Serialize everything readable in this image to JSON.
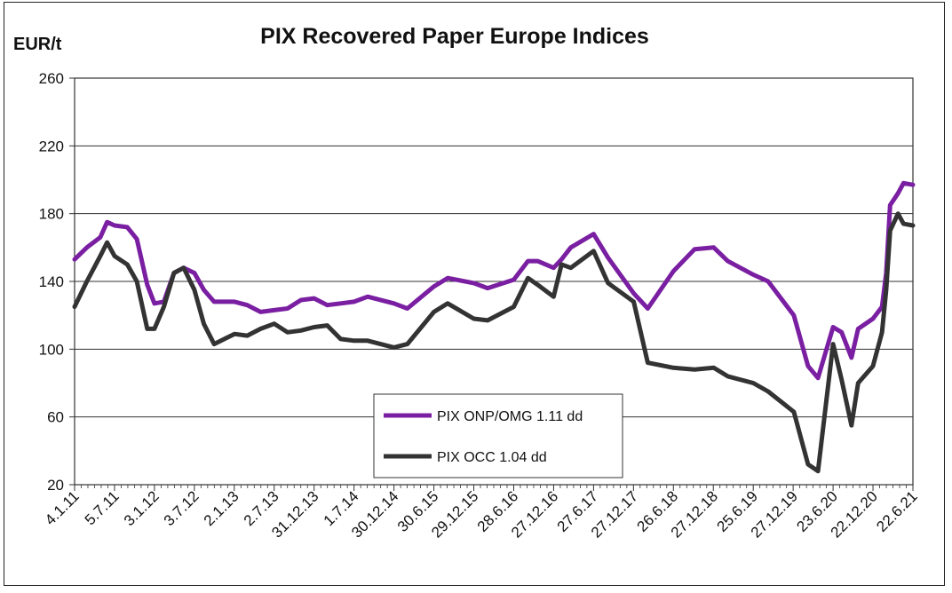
{
  "chart_data": {
    "type": "line",
    "title": "PIX Recovered Paper Europe Indices",
    "ylabel": "EUR/t",
    "xlabel": "",
    "ylim": [
      20,
      260
    ],
    "yticks": [
      20,
      60,
      100,
      140,
      180,
      220,
      260
    ],
    "grid": "horizontal",
    "legend_placement": "bottom-center",
    "x_tick_labels": [
      "4.1.11",
      "5.7.11",
      "3.1.12",
      "3.7.12",
      "2.1.13",
      "2.7.13",
      "31.12.13",
      "1.7.14",
      "30.12.14",
      "30.6.15",
      "29.12.15",
      "28.6.16",
      "27.12.16",
      "27.6.17",
      "27.12.17",
      "26.6.18",
      "27.12.18",
      "25.6.19",
      "27.12.19",
      "23.6.20",
      "22.12.20",
      "22.6.21"
    ],
    "x_start": "2011-01-04",
    "x_end": "2021-06-22",
    "series": [
      {
        "name": "PIX ONP/OMG 1.11 dd",
        "color": "#7a1fa2",
        "points": [
          [
            "2011-01-04",
            153
          ],
          [
            "2011-03-01",
            160
          ],
          [
            "2011-05-01",
            166
          ],
          [
            "2011-06-01",
            175
          ],
          [
            "2011-07-05",
            173
          ],
          [
            "2011-09-01",
            172
          ],
          [
            "2011-10-15",
            165
          ],
          [
            "2011-12-01",
            138
          ],
          [
            "2012-01-03",
            127
          ],
          [
            "2012-02-15",
            128
          ],
          [
            "2012-04-01",
            145
          ],
          [
            "2012-05-15",
            148
          ],
          [
            "2012-07-03",
            145
          ],
          [
            "2012-08-15",
            135
          ],
          [
            "2012-10-01",
            128
          ],
          [
            "2013-01-02",
            128
          ],
          [
            "2013-03-01",
            126
          ],
          [
            "2013-05-01",
            122
          ],
          [
            "2013-07-02",
            123
          ],
          [
            "2013-09-01",
            124
          ],
          [
            "2013-11-01",
            129
          ],
          [
            "2013-12-31",
            130
          ],
          [
            "2014-03-01",
            126
          ],
          [
            "2014-05-01",
            127
          ],
          [
            "2014-07-01",
            128
          ],
          [
            "2014-09-01",
            131
          ],
          [
            "2014-12-30",
            127
          ],
          [
            "2015-03-01",
            124
          ],
          [
            "2015-06-30",
            137
          ],
          [
            "2015-09-01",
            142
          ],
          [
            "2015-12-29",
            139
          ],
          [
            "2016-03-01",
            136
          ],
          [
            "2016-06-28",
            141
          ],
          [
            "2016-09-01",
            152
          ],
          [
            "2016-10-15",
            152
          ],
          [
            "2016-12-27",
            148
          ],
          [
            "2017-02-01",
            153
          ],
          [
            "2017-03-15",
            160
          ],
          [
            "2017-06-27",
            168
          ],
          [
            "2017-09-01",
            154
          ],
          [
            "2017-12-27",
            133
          ],
          [
            "2018-03-01",
            124
          ],
          [
            "2018-06-26",
            146
          ],
          [
            "2018-10-01",
            159
          ],
          [
            "2018-12-27",
            160
          ],
          [
            "2019-03-01",
            152
          ],
          [
            "2019-06-25",
            144
          ],
          [
            "2019-09-01",
            140
          ],
          [
            "2019-12-27",
            120
          ],
          [
            "2020-03-01",
            90
          ],
          [
            "2020-04-15",
            83
          ],
          [
            "2020-06-23",
            113
          ],
          [
            "2020-08-01",
            110
          ],
          [
            "2020-09-15",
            95
          ],
          [
            "2020-10-15",
            112
          ],
          [
            "2020-12-22",
            118
          ],
          [
            "2021-02-01",
            125
          ],
          [
            "2021-02-20",
            145
          ],
          [
            "2021-03-10",
            185
          ],
          [
            "2021-04-15",
            192
          ],
          [
            "2021-05-10",
            198
          ],
          [
            "2021-06-22",
            197
          ]
        ]
      },
      {
        "name": "PIX OCC 1.04 dd",
        "color": "#333333",
        "points": [
          [
            "2011-01-04",
            125
          ],
          [
            "2011-03-01",
            140
          ],
          [
            "2011-05-01",
            155
          ],
          [
            "2011-06-01",
            163
          ],
          [
            "2011-07-05",
            155
          ],
          [
            "2011-09-01",
            150
          ],
          [
            "2011-10-15",
            140
          ],
          [
            "2011-12-01",
            112
          ],
          [
            "2012-01-03",
            112
          ],
          [
            "2012-02-15",
            125
          ],
          [
            "2012-04-01",
            145
          ],
          [
            "2012-05-15",
            148
          ],
          [
            "2012-07-03",
            135
          ],
          [
            "2012-08-15",
            115
          ],
          [
            "2012-10-01",
            103
          ],
          [
            "2013-01-02",
            109
          ],
          [
            "2013-03-01",
            108
          ],
          [
            "2013-05-01",
            112
          ],
          [
            "2013-07-02",
            115
          ],
          [
            "2013-09-01",
            110
          ],
          [
            "2013-11-01",
            111
          ],
          [
            "2013-12-31",
            113
          ],
          [
            "2014-03-01",
            114
          ],
          [
            "2014-05-01",
            106
          ],
          [
            "2014-07-01",
            105
          ],
          [
            "2014-09-01",
            105
          ],
          [
            "2014-12-30",
            101
          ],
          [
            "2015-03-01",
            103
          ],
          [
            "2015-06-30",
            122
          ],
          [
            "2015-09-01",
            127
          ],
          [
            "2015-12-29",
            118
          ],
          [
            "2016-03-01",
            117
          ],
          [
            "2016-06-28",
            125
          ],
          [
            "2016-09-01",
            142
          ],
          [
            "2016-10-15",
            138
          ],
          [
            "2016-12-27",
            131
          ],
          [
            "2017-02-01",
            150
          ],
          [
            "2017-03-15",
            148
          ],
          [
            "2017-06-27",
            158
          ],
          [
            "2017-09-01",
            139
          ],
          [
            "2017-12-27",
            128
          ],
          [
            "2018-03-01",
            92
          ],
          [
            "2018-06-26",
            89
          ],
          [
            "2018-10-01",
            88
          ],
          [
            "2018-12-27",
            89
          ],
          [
            "2019-03-01",
            84
          ],
          [
            "2019-06-25",
            80
          ],
          [
            "2019-09-01",
            75
          ],
          [
            "2019-12-27",
            63
          ],
          [
            "2020-03-01",
            32
          ],
          [
            "2020-04-15",
            28
          ],
          [
            "2020-06-23",
            103
          ],
          [
            "2020-08-01",
            82
          ],
          [
            "2020-09-15",
            55
          ],
          [
            "2020-10-15",
            80
          ],
          [
            "2020-12-22",
            90
          ],
          [
            "2021-02-01",
            110
          ],
          [
            "2021-02-20",
            135
          ],
          [
            "2021-03-10",
            170
          ],
          [
            "2021-04-15",
            180
          ],
          [
            "2021-05-10",
            174
          ],
          [
            "2021-06-22",
            173
          ]
        ]
      }
    ]
  }
}
